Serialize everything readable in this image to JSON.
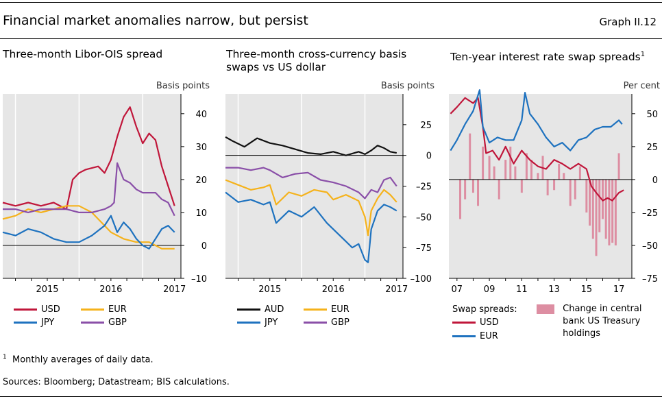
{
  "header": {
    "title": "Financial market anomalies narrow, but persist",
    "graph_number": "Graph II.12"
  },
  "colors": {
    "usd": "#c0163a",
    "jpy": "#1e72bf",
    "eur": "#f5b21b",
    "gbp": "#8a4fa8",
    "aud": "#111111",
    "treasury_bar": "#dd8ea2",
    "panel_bg": "#e6e6e6"
  },
  "footnote": {
    "marker": "1",
    "text": "Monthly averages of daily data."
  },
  "sources": "Sources: Bloomberg; Datastream; BIS calculations.",
  "chart_data": [
    {
      "type": "line",
      "title": "Three-month Libor-OIS spread",
      "unit": "Basis points",
      "x_range": [
        2014.3,
        2017.1
      ],
      "ylim": [
        -10,
        46
      ],
      "yticks": [
        {
          "v": -10,
          "label": "–10"
        },
        {
          "v": 0,
          "label": "0"
        },
        {
          "v": 10,
          "label": "10"
        },
        {
          "v": 20,
          "label": "20"
        },
        {
          "v": 30,
          "label": "30"
        },
        {
          "v": 40,
          "label": "40"
        }
      ],
      "xtick_labels": [
        {
          "v": 2015,
          "label": "2015"
        },
        {
          "v": 2016,
          "label": "2016"
        },
        {
          "v": 2017,
          "label": "2017"
        }
      ],
      "xgrid": [
        2014.5,
        2015.5,
        2016.5
      ],
      "zero_line": 0,
      "legend": [
        {
          "key": "usd",
          "label": "USD"
        },
        {
          "key": "eur",
          "label": "EUR"
        },
        {
          "key": "jpy",
          "label": "JPY"
        },
        {
          "key": "gbp",
          "label": "GBP"
        }
      ],
      "series": [
        {
          "name": "USD",
          "key": "usd",
          "x": [
            2014.3,
            2014.5,
            2014.7,
            2014.9,
            2015.1,
            2015.3,
            2015.4,
            2015.5,
            2015.6,
            2015.8,
            2015.9,
            2016.0,
            2016.1,
            2016.2,
            2016.3,
            2016.4,
            2016.5,
            2016.6,
            2016.7,
            2016.8,
            2016.9,
            2017.0
          ],
          "y": [
            13,
            12,
            13,
            12,
            13,
            11,
            20,
            22,
            23,
            24,
            22,
            26,
            33,
            39,
            42,
            36,
            31,
            34,
            32,
            24,
            18,
            12
          ]
        },
        {
          "name": "EUR",
          "key": "eur",
          "x": [
            2014.3,
            2014.5,
            2014.7,
            2014.9,
            2015.1,
            2015.3,
            2015.5,
            2015.7,
            2015.9,
            2016.0,
            2016.2,
            2016.4,
            2016.6,
            2016.8,
            2016.9,
            2017.0
          ],
          "y": [
            8,
            9,
            11,
            10,
            11,
            12,
            12,
            10,
            6,
            4,
            2,
            1,
            1,
            -1,
            -1,
            -1
          ]
        },
        {
          "name": "JPY",
          "key": "jpy",
          "x": [
            2014.3,
            2014.5,
            2014.7,
            2014.9,
            2015.1,
            2015.3,
            2015.5,
            2015.7,
            2015.9,
            2016.0,
            2016.1,
            2016.2,
            2016.3,
            2016.4,
            2016.5,
            2016.6,
            2016.7,
            2016.8,
            2016.9,
            2017.0
          ],
          "y": [
            4,
            3,
            5,
            4,
            2,
            1,
            1,
            3,
            6,
            9,
            4,
            7,
            5,
            2,
            0,
            -1,
            2,
            5,
            6,
            4
          ]
        },
        {
          "name": "GBP",
          "key": "gbp",
          "x": [
            2014.3,
            2014.5,
            2014.7,
            2014.9,
            2015.1,
            2015.3,
            2015.5,
            2015.7,
            2015.9,
            2016.0,
            2016.05,
            2016.1,
            2016.2,
            2016.3,
            2016.4,
            2016.5,
            2016.6,
            2016.7,
            2016.8,
            2016.9,
            2017.0
          ],
          "y": [
            11,
            11,
            10,
            11,
            11,
            11,
            10,
            10,
            11,
            12,
            13,
            25,
            20,
            19,
            17,
            16,
            16,
            16,
            14,
            13,
            9
          ]
        }
      ]
    },
    {
      "type": "line",
      "title": "Three-month cross-currency basis swaps vs US dollar",
      "unit": "Basis points",
      "x_range": [
        2014.3,
        2017.1
      ],
      "ylim": [
        -100,
        50
      ],
      "yticks": [
        {
          "v": -100,
          "label": "–100"
        },
        {
          "v": -75,
          "label": "–75"
        },
        {
          "v": -50,
          "label": "–50"
        },
        {
          "v": -25,
          "label": "–25"
        },
        {
          "v": 0,
          "label": "0"
        },
        {
          "v": 25,
          "label": "25"
        }
      ],
      "xtick_labels": [
        {
          "v": 2015,
          "label": "2015"
        },
        {
          "v": 2016,
          "label": "2016"
        },
        {
          "v": 2017,
          "label": "2017"
        }
      ],
      "xgrid": [
        2014.5,
        2015.5,
        2016.5
      ],
      "zero_line": 0,
      "legend": [
        {
          "key": "aud",
          "label": "AUD"
        },
        {
          "key": "eur",
          "label": "EUR"
        },
        {
          "key": "jpy",
          "label": "JPY"
        },
        {
          "key": "gbp",
          "label": "GBP"
        }
      ],
      "series": [
        {
          "name": "AUD",
          "key": "aud",
          "x": [
            2014.3,
            2014.4,
            2014.6,
            2014.8,
            2015.0,
            2015.2,
            2015.4,
            2015.6,
            2015.8,
            2016.0,
            2016.2,
            2016.4,
            2016.5,
            2016.6,
            2016.7,
            2016.8,
            2016.9,
            2017.0
          ],
          "y": [
            15,
            12,
            7,
            14,
            10,
            8,
            5,
            2,
            1,
            3,
            0,
            3,
            1,
            4,
            8,
            6,
            3,
            2
          ]
        },
        {
          "name": "EUR",
          "key": "eur",
          "x": [
            2014.3,
            2014.5,
            2014.7,
            2014.9,
            2015.0,
            2015.1,
            2015.3,
            2015.5,
            2015.7,
            2015.9,
            2016.0,
            2016.2,
            2016.4,
            2016.5,
            2016.55,
            2016.6,
            2016.7,
            2016.8,
            2016.9,
            2017.0
          ],
          "y": [
            -20,
            -24,
            -28,
            -26,
            -24,
            -40,
            -30,
            -33,
            -28,
            -30,
            -36,
            -32,
            -37,
            -50,
            -65,
            -45,
            -35,
            -28,
            -32,
            -38
          ]
        },
        {
          "name": "JPY",
          "key": "jpy",
          "x": [
            2014.3,
            2014.5,
            2014.7,
            2014.9,
            2015.0,
            2015.1,
            2015.3,
            2015.5,
            2015.7,
            2015.9,
            2016.0,
            2016.2,
            2016.3,
            2016.4,
            2016.5,
            2016.55,
            2016.6,
            2016.7,
            2016.8,
            2016.9,
            2017.0
          ],
          "y": [
            -30,
            -38,
            -36,
            -40,
            -38,
            -55,
            -45,
            -50,
            -42,
            -55,
            -60,
            -70,
            -75,
            -72,
            -85,
            -87,
            -60,
            -45,
            -40,
            -42,
            -45
          ]
        },
        {
          "name": "GBP",
          "key": "gbp",
          "x": [
            2014.3,
            2014.5,
            2014.7,
            2014.9,
            2015.0,
            2015.2,
            2015.4,
            2015.6,
            2015.8,
            2016.0,
            2016.2,
            2016.4,
            2016.5,
            2016.6,
            2016.7,
            2016.8,
            2016.9,
            2017.0
          ],
          "y": [
            -10,
            -10,
            -12,
            -10,
            -12,
            -18,
            -15,
            -14,
            -20,
            -22,
            -25,
            -30,
            -35,
            -28,
            -30,
            -20,
            -18,
            -25
          ]
        }
      ]
    },
    {
      "type": "line",
      "title": "Ten-year interest rate swap spreads",
      "title_superscript": "1",
      "unit": "Per cent",
      "x_range": [
        2006.5,
        2017.8
      ],
      "ylim": [
        -75,
        65
      ],
      "yticks": [
        {
          "v": -75,
          "label": "–75"
        },
        {
          "v": -50,
          "label": "–50"
        },
        {
          "v": -25,
          "label": "–25"
        },
        {
          "v": 0,
          "label": "0"
        },
        {
          "v": 25,
          "label": "25"
        },
        {
          "v": 50,
          "label": "50"
        }
      ],
      "xtick_labels": [
        {
          "v": 2007,
          "label": "07"
        },
        {
          "v": 2009,
          "label": "09"
        },
        {
          "v": 2011,
          "label": "11"
        },
        {
          "v": 2013,
          "label": "13"
        },
        {
          "v": 2015,
          "label": "15"
        },
        {
          "v": 2017,
          "label": "17"
        }
      ],
      "xgrid": [],
      "zero_line": 0,
      "legend_title": "Swap spreads:",
      "legend": [
        {
          "key": "usd",
          "label": "USD"
        },
        {
          "key": "jpy",
          "label": "EUR"
        }
      ],
      "bar_legend": "Change in central bank US Treasury holdings",
      "series": [
        {
          "name": "USD",
          "key": "usd",
          "x": [
            2006.6,
            2007.0,
            2007.5,
            2008.0,
            2008.3,
            2008.6,
            2008.8,
            2009.2,
            2009.6,
            2010.0,
            2010.5,
            2011.0,
            2011.5,
            2012.0,
            2012.5,
            2013.0,
            2013.5,
            2014.0,
            2014.5,
            2015.0,
            2015.3,
            2015.6,
            2016.0,
            2016.3,
            2016.6,
            2017.0,
            2017.3
          ],
          "y": [
            50,
            55,
            62,
            58,
            62,
            40,
            20,
            22,
            15,
            25,
            12,
            22,
            15,
            10,
            8,
            15,
            12,
            8,
            12,
            8,
            -5,
            -10,
            -16,
            -14,
            -16,
            -10,
            -8
          ]
        },
        {
          "name": "EUR",
          "key": "jpy",
          "x": [
            2006.6,
            2007.0,
            2007.5,
            2008.0,
            2008.4,
            2008.6,
            2009.0,
            2009.5,
            2010.0,
            2010.5,
            2011.0,
            2011.2,
            2011.5,
            2012.0,
            2012.5,
            2013.0,
            2013.5,
            2014.0,
            2014.5,
            2015.0,
            2015.5,
            2016.0,
            2016.5,
            2017.0,
            2017.2
          ],
          "y": [
            22,
            30,
            42,
            52,
            68,
            40,
            28,
            32,
            30,
            30,
            45,
            66,
            50,
            42,
            32,
            25,
            28,
            22,
            30,
            32,
            38,
            40,
            40,
            45,
            42
          ]
        },
        {
          "name": "Change in central bank US Treasury holdings",
          "key": "treasury_bar",
          "type": "bar",
          "x": [
            2007.2,
            2007.5,
            2007.8,
            2008.0,
            2008.3,
            2008.6,
            2009.0,
            2009.3,
            2009.6,
            2010.0,
            2010.3,
            2010.6,
            2011.0,
            2011.3,
            2011.6,
            2012.0,
            2012.3,
            2012.6,
            2013.0,
            2013.3,
            2013.6,
            2014.0,
            2014.3,
            2014.6,
            2015.0,
            2015.2,
            2015.4,
            2015.6,
            2015.8,
            2016.0,
            2016.2,
            2016.4,
            2016.6,
            2016.8,
            2017.0
          ],
          "y": [
            -30,
            -15,
            35,
            -10,
            -20,
            25,
            18,
            10,
            -15,
            15,
            25,
            10,
            -10,
            20,
            15,
            5,
            18,
            -12,
            -8,
            12,
            5,
            -20,
            -15,
            10,
            -25,
            -35,
            -45,
            -58,
            -40,
            -30,
            -45,
            -50,
            -48,
            -50,
            20
          ]
        }
      ]
    }
  ]
}
